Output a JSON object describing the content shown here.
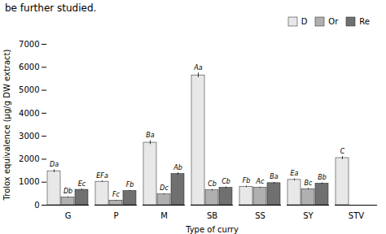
{
  "chart_data": {
    "type": "bar",
    "title": "be further studied.",
    "categories": [
      "G",
      "P",
      "M",
      "SB",
      "SS",
      "SY",
      "STV"
    ],
    "series": [
      {
        "name": "D",
        "color": "#e8e8e8",
        "values": [
          1480,
          1020,
          2720,
          5650,
          800,
          1100,
          2050
        ],
        "error_bars": [
          60,
          30,
          80,
          100,
          30,
          40,
          60
        ],
        "labels": [
          "Da",
          "EFa",
          "Ba",
          "Aa",
          "Fb",
          "Ea",
          "C"
        ]
      },
      {
        "name": "Or",
        "color": "#b0b0b0",
        "values": [
          340,
          200,
          470,
          650,
          760,
          700,
          null
        ],
        "error_bars": [
          20,
          15,
          25,
          30,
          25,
          25,
          0
        ],
        "labels": [
          "Db",
          "Fc",
          "Dc",
          "Cb",
          "Ac",
          "Bc",
          null
        ]
      },
      {
        "name": "Re",
        "color": "#707070",
        "values": [
          670,
          620,
          1360,
          760,
          960,
          940,
          null
        ],
        "error_bars": [
          25,
          20,
          50,
          35,
          30,
          30,
          0
        ],
        "labels": [
          "Ec",
          "Fb",
          "Ab",
          "Cb",
          "Ba",
          "Bb",
          null
        ]
      }
    ],
    "xlabel": "Type of curry",
    "ylabel": "Trolox equivalence (µg/g DW extract)",
    "ylim": [
      0,
      7000
    ],
    "yticks": [
      0,
      1000,
      2000,
      3000,
      4000,
      5000,
      6000,
      7000
    ],
    "legend": "upper right"
  }
}
